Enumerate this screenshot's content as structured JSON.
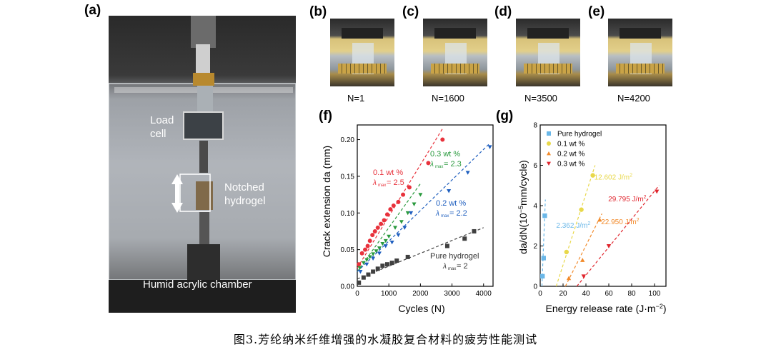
{
  "panels": {
    "a": "(a)",
    "b": "(b)",
    "c": "(c)",
    "d": "(d)",
    "e": "(e)",
    "f": "(f)",
    "g": "(g)"
  },
  "photo_a": {
    "load_cell": [
      "Load",
      "cell"
    ],
    "notched_hydrogel": [
      "Notched",
      "hydrogel"
    ],
    "chamber": "Humid acrylic chamber"
  },
  "photo_labels": [
    "N=1",
    "N=1600",
    "N=3500",
    "N=4200"
  ],
  "caption": "图3.芳纶纳米纤维增强的水凝胶复合材料的疲劳性能测试",
  "chart_data": [
    {
      "type": "scatter",
      "xlabel": "Cycles (N)",
      "ylabel": "Crack extension da (mm)",
      "xlim": [
        0,
        4300
      ],
      "ylim": [
        0,
        0.22
      ],
      "xticks": [
        0,
        1000,
        2000,
        3000,
        4000
      ],
      "yticks": [
        0,
        0.05,
        0.1,
        0.15,
        0.2
      ],
      "ytick_labels": [
        "0.00",
        "0.05",
        "0.10",
        "0.15",
        "0.20"
      ],
      "series": [
        {
          "color": "#e8323c",
          "marker": "circle",
          "label": [
            "0.1 wt %",
            "= 2.5"
          ],
          "x": [
            50,
            150,
            250,
            330,
            400,
            480,
            560,
            650,
            750,
            850,
            950,
            1050,
            1150,
            1300,
            1450,
            1650,
            2250,
            2700
          ],
          "y": [
            0.03,
            0.045,
            0.05,
            0.055,
            0.062,
            0.07,
            0.075,
            0.08,
            0.085,
            0.09,
            0.098,
            0.105,
            0.11,
            0.115,
            0.125,
            0.135,
            0.168,
            0.2
          ],
          "fit": [
            [
              0,
              0.025
            ],
            [
              2700,
              0.215
            ]
          ]
        },
        {
          "color": "#2a9a3e",
          "marker": "triangle-down",
          "label": [
            "0.3 wt %",
            "= 2.3"
          ],
          "x": [
            80,
            200,
            300,
            400,
            500,
            600,
            700,
            800,
            900,
            1000,
            1200,
            1400,
            1600,
            1800,
            2000
          ],
          "y": [
            0.025,
            0.032,
            0.036,
            0.04,
            0.044,
            0.048,
            0.052,
            0.058,
            0.062,
            0.068,
            0.08,
            0.088,
            0.1,
            0.112,
            0.125
          ],
          "fit": [
            [
              0,
              0.02
            ],
            [
              2000,
              0.14
            ]
          ]
        },
        {
          "color": "#1f5fbf",
          "marker": "triangle-down",
          "label": [
            "0.2 wt %",
            "= 2.2"
          ],
          "x": [
            100,
            300,
            500,
            700,
            900,
            1100,
            1300,
            1500,
            1700,
            2900,
            3500,
            4200
          ],
          "y": [
            0.02,
            0.03,
            0.038,
            0.045,
            0.055,
            0.06,
            0.07,
            0.08,
            0.1,
            0.13,
            0.155,
            0.19
          ],
          "fit": [
            [
              0,
              0.02
            ],
            [
              4200,
              0.195
            ]
          ]
        },
        {
          "color": "#404040",
          "marker": "square",
          "label": [
            "Pure hydrogel",
            "= 2"
          ],
          "x": [
            50,
            200,
            350,
            500,
            650,
            800,
            950,
            1100,
            1250,
            1600,
            2850,
            3400,
            3700
          ],
          "y": [
            0.005,
            0.012,
            0.016,
            0.02,
            0.024,
            0.028,
            0.03,
            0.032,
            0.035,
            0.04,
            0.055,
            0.065,
            0.075
          ],
          "fit": [
            [
              0,
              0.01
            ],
            [
              4000,
              0.08
            ]
          ]
        }
      ]
    },
    {
      "type": "scatter",
      "xlabel": "Energy release rate (J·m",
      "xlabel_sup": "−2",
      "xlabel_end": ")",
      "ylabel": "da/dN(10",
      "ylabel_sup": "−5",
      "ylabel_end": "mm/cycle)",
      "xlim": [
        0,
        110
      ],
      "ylim": [
        0,
        8
      ],
      "xticks": [
        0,
        20,
        40,
        60,
        80,
        100
      ],
      "yticks": [
        0,
        2,
        4,
        6,
        8
      ],
      "series": [
        {
          "name": "Pure hydrogel",
          "color": "#6ab7e8",
          "marker": "square",
          "x": [
            2,
            3,
            4
          ],
          "y": [
            0.5,
            1.4,
            3.5
          ],
          "fit": [
            [
              1.5,
              0
            ],
            [
              4.5,
              4.3
            ]
          ],
          "annotation": "2.362 J/m",
          "annotation_sup": "2"
        },
        {
          "name": "0.1 wt %",
          "color": "#e8d84a",
          "marker": "circle",
          "x": [
            23,
            36,
            46
          ],
          "y": [
            1.7,
            3.8,
            5.5
          ],
          "fit": [
            [
              14,
              0
            ],
            [
              48,
              6.0
            ]
          ],
          "annotation": "12.602 J/m",
          "annotation_sup": "2"
        },
        {
          "name": "0.2 wt %",
          "color": "#f28a2a",
          "marker": "triangle-up",
          "x": [
            25,
            37,
            52
          ],
          "y": [
            0.4,
            1.3,
            3.3
          ],
          "fit": [
            [
              22,
              0
            ],
            [
              54,
              3.6
            ]
          ],
          "annotation": "22.950 J/m",
          "annotation_sup": "2"
        },
        {
          "name": "0.3 wt %",
          "color": "#e0262e",
          "marker": "triangle-down",
          "x": [
            38,
            60,
            102
          ],
          "y": [
            0.5,
            2.0,
            4.7
          ],
          "fit": [
            [
              32,
              0
            ],
            [
              104,
              5.0
            ]
          ],
          "annotation": "29.795 J/m",
          "annotation_sup": "2"
        }
      ]
    }
  ]
}
